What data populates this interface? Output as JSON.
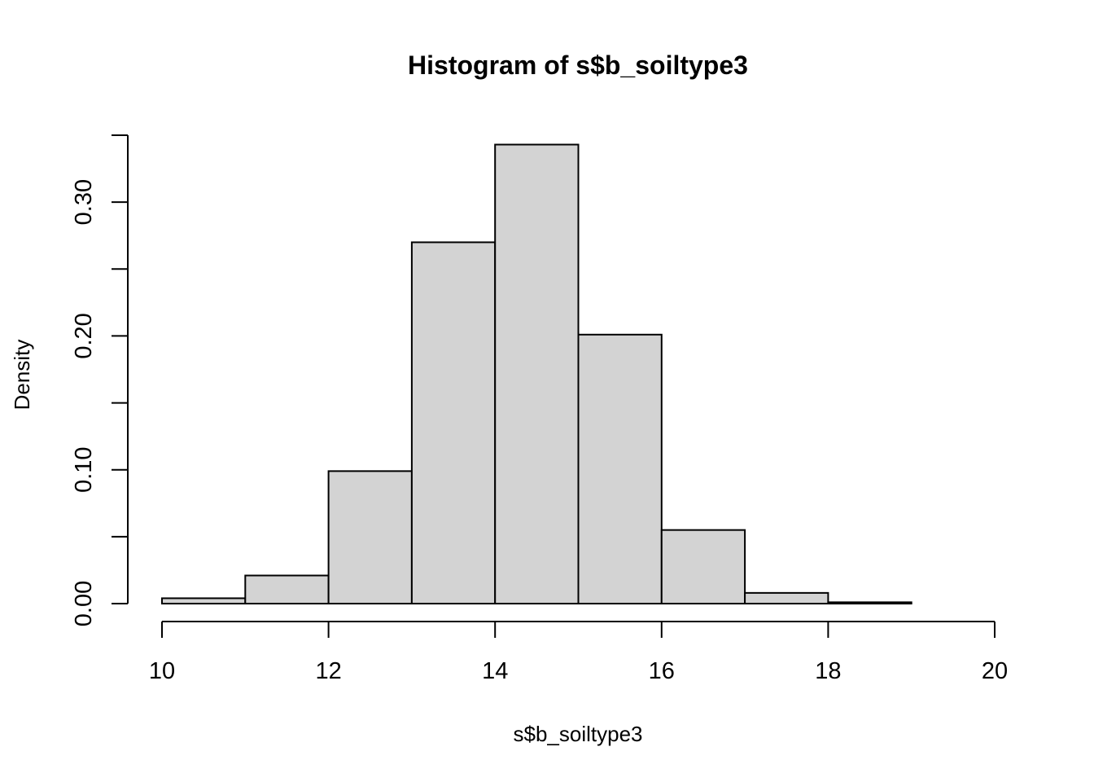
{
  "chart_data": {
    "type": "bar",
    "title": "Histogram of s$b_soiltype3",
    "xlabel": "s$b_soiltype3",
    "ylabel": "Density",
    "bins": [
      {
        "from": 10,
        "to": 11,
        "density": 0.004
      },
      {
        "from": 11,
        "to": 12,
        "density": 0.021
      },
      {
        "from": 12,
        "to": 13,
        "density": 0.099
      },
      {
        "from": 13,
        "to": 14,
        "density": 0.27
      },
      {
        "from": 14,
        "to": 15,
        "density": 0.343
      },
      {
        "from": 15,
        "to": 16,
        "density": 0.201
      },
      {
        "from": 16,
        "to": 17,
        "density": 0.055
      },
      {
        "from": 17,
        "to": 18,
        "density": 0.008
      },
      {
        "from": 18,
        "to": 19,
        "density": 0.001
      },
      {
        "from": 19,
        "to": 20,
        "density": 0.0
      }
    ],
    "xlim": [
      10,
      20
    ],
    "ylim": [
      0,
      0.35
    ],
    "x_ticks": [
      10,
      12,
      14,
      16,
      18,
      20
    ],
    "x_tick_labels": [
      "10",
      "12",
      "14",
      "16",
      "18",
      "20"
    ],
    "y_ticks": [
      0.0,
      0.05,
      0.1,
      0.15,
      0.2,
      0.25,
      0.3,
      0.35
    ],
    "y_tick_labels": [
      "0.00",
      "",
      "0.10",
      "",
      "0.20",
      "",
      "0.30",
      ""
    ],
    "grid": false,
    "legend": "none",
    "colors": {
      "bar_fill": "#d3d3d3",
      "bar_stroke": "#000000"
    }
  }
}
